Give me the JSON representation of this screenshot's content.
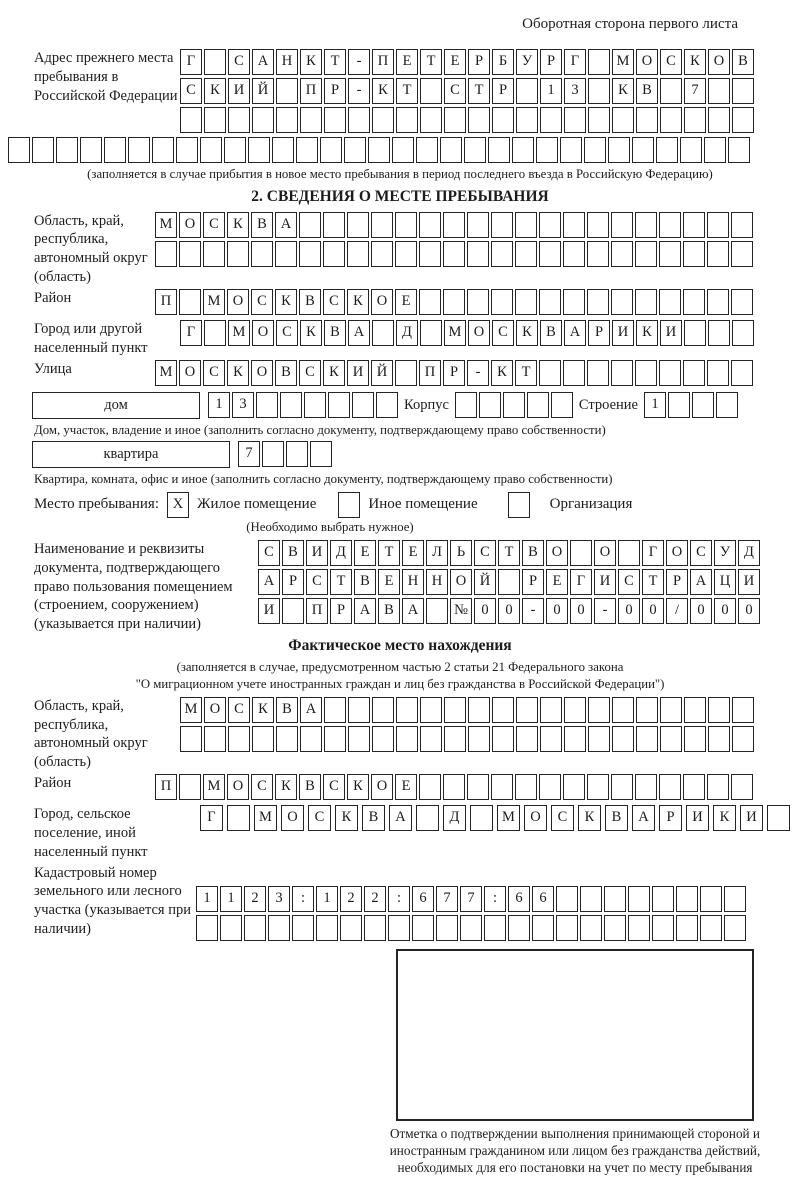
{
  "page": {
    "corner_note": "Оборотная сторона первого листа"
  },
  "prev_address": {
    "label": "Адрес прежнего места пребывания в Российской Федерации",
    "row1": "Г САНКТ-ПЕТЕРБУРГ МОСКОВ",
    "row2": "СКИЙ ПР-КТ СТР 13 КВ 7",
    "row3": "",
    "row4": "",
    "note": "(заполняется в случае прибытия в новое место пребывания в период последнего въезда в Российскую Федерацию)"
  },
  "section2": {
    "title": "2. СВЕДЕНИЯ О МЕСТЕ ПРЕБЫВАНИЯ",
    "oblast_label": "Область, край, республика, автономный округ (область)",
    "oblast_row1": "МОСКВА",
    "oblast_row2": "",
    "rayon_label": "Район",
    "rayon_row": "П МОСКВСКОЕ",
    "gorod_label": "Город или другой населенный пункт",
    "gorod_row": "Г МОСКВА Д МОСКВАРИКИ",
    "ulitsa_label": "Улица",
    "ulitsa_row": "МОСКОВСКИЙ ПР-КТ",
    "house": {
      "box_label": "дом",
      "value": "13",
      "korpus_label": "Корпус",
      "korpus_value": "",
      "stroenie_label": "Строение",
      "stroenie_value": "1",
      "note": "Дом, участок, владение и иное (заполнить согласно документу, подтверждающему право собственности)"
    },
    "flat": {
      "box_label": "квартира",
      "value": "7",
      "note": "Квартира, комната, офис и иное (заполнить согласно документу, подтверждающему право собственности)"
    },
    "place_type": {
      "label": "Место пребывания:",
      "options": [
        {
          "mark": "X",
          "label": "Жилое помещение"
        },
        {
          "mark": "",
          "label": "Иное помещение"
        },
        {
          "mark": "",
          "label": "Организация"
        }
      ],
      "note": "(Необходимо выбрать нужное)"
    },
    "doc": {
      "label": "Наименование и реквизиты документа, подтверждающего право пользования помещением (строением, сооружением) (указывается при наличии)",
      "row1": "СВИДЕТЕЛЬСТВО О ГОСУД",
      "row2": "АРСТВЕННОЙ РЕГИСТРАЦИ",
      "row3": "И ПРАВА №00-00-00/000"
    }
  },
  "fact": {
    "title": "Фактическое место нахождения",
    "note1": "(заполняется в случае, предусмотренном частью 2 статьи 21 Федерального закона",
    "note2": "\"О миграционном учете иностранных граждан и лиц без гражданства в Российской Федерации\")",
    "oblast_label": "Область, край, республика, автономный округ (область)",
    "oblast_row1": "МОСКВА",
    "oblast_row2": "",
    "rayon_label": "Район",
    "rayon_row": "П МОСКВСКОЕ",
    "gorod_label": "Город, сельское поселение, иной населенный пункт",
    "gorod_row": "Г МОСКВА Д МОСКВАРИКИ",
    "kadastr_label": "Кадастровый номер земельного или лесного участка (указывается при наличии)",
    "kadastr_row1": "1123:122:677:66",
    "kadastr_row2": "",
    "mark_caption": "Отметка о подтверждении выполнения принимающей стороной и иностранным гражданином или лицом без гражданства действий, необходимых для его постановки на учет по месту пребывания"
  }
}
